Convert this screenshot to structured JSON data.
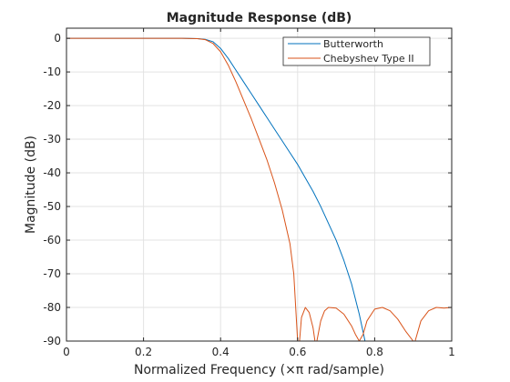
{
  "chart_data": {
    "type": "line",
    "title": "Magnitude Response (dB)",
    "xlabel": "Normalized Frequency (×π rad/sample)",
    "ylabel": "Magnitude (dB)",
    "xlim": [
      0,
      1
    ],
    "ylim": [
      -90,
      3
    ],
    "xticks": [
      0,
      0.2,
      0.4,
      0.6,
      0.8,
      1
    ],
    "xtick_labels": [
      "0",
      "0.2",
      "0.4",
      "0.6",
      "0.8",
      "1"
    ],
    "yticks": [
      0,
      -10,
      -20,
      -30,
      -40,
      -50,
      -60,
      -70,
      -80,
      -90
    ],
    "ytick_labels": [
      "0",
      "-10",
      "-20",
      "-30",
      "-40",
      "-50",
      "-60",
      "-70",
      "-80",
      "-90"
    ],
    "grid": true,
    "legend_position": "top-right",
    "series": [
      {
        "name": "Butterworth",
        "color": "#0072BD",
        "x": [
          0,
          0.1,
          0.2,
          0.3,
          0.34,
          0.36,
          0.38,
          0.4,
          0.42,
          0.44,
          0.46,
          0.48,
          0.5,
          0.52,
          0.54,
          0.56,
          0.58,
          0.6,
          0.62,
          0.64,
          0.66,
          0.68,
          0.7,
          0.72,
          0.74,
          0.76,
          0.775
        ],
        "y": [
          0,
          0,
          0,
          0,
          -0.1,
          -0.3,
          -1.0,
          -3.0,
          -6.0,
          -9.5,
          -13.0,
          -16.5,
          -20.0,
          -23.5,
          -27.0,
          -30.5,
          -34.0,
          -37.5,
          -41.5,
          -45.5,
          -50.0,
          -55.0,
          -60.0,
          -66.0,
          -73.0,
          -82.0,
          -90.0
        ]
      },
      {
        "name": "Chebyshev Type II",
        "color": "#D95319",
        "x": [
          0,
          0.1,
          0.2,
          0.3,
          0.34,
          0.36,
          0.38,
          0.4,
          0.42,
          0.44,
          0.46,
          0.48,
          0.5,
          0.52,
          0.54,
          0.56,
          0.58,
          0.59,
          0.6,
          0.605,
          0.61,
          0.62,
          0.63,
          0.64,
          0.645,
          0.65,
          0.655,
          0.66,
          0.67,
          0.68,
          0.7,
          0.72,
          0.74,
          0.75,
          0.76,
          0.77,
          0.78,
          0.8,
          0.82,
          0.84,
          0.86,
          0.88,
          0.9,
          0.905,
          0.91,
          0.92,
          0.94,
          0.96,
          0.98,
          1.0
        ],
        "y": [
          0,
          0,
          0,
          0,
          -0.1,
          -0.4,
          -1.5,
          -4.0,
          -8.0,
          -13.0,
          -18.5,
          -24.0,
          -30.0,
          -36.0,
          -43.0,
          -51.0,
          -61.0,
          -70.0,
          -90.0,
          -90.0,
          -83.0,
          -80.0,
          -81.5,
          -86.0,
          -90.0,
          -90.0,
          -87.0,
          -84.0,
          -81.0,
          -80.0,
          -80.2,
          -82.0,
          -85.5,
          -88.0,
          -90.0,
          -88.0,
          -84.0,
          -80.5,
          -80.0,
          -81.0,
          -83.5,
          -87.0,
          -90.0,
          -90.0,
          -88.0,
          -84.0,
          -81.0,
          -80.0,
          -80.2,
          -80.0
        ]
      }
    ]
  }
}
